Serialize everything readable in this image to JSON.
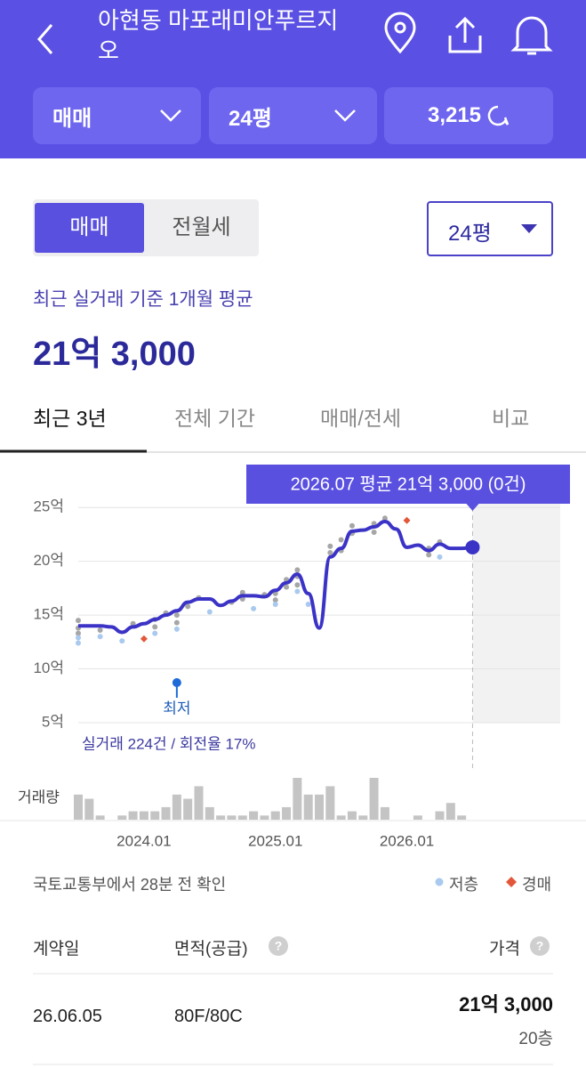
{
  "header": {
    "title": "아현동 마포래미안푸르지오",
    "filters": [
      "매매",
      "24평",
      "3,215"
    ]
  },
  "tabs": [
    "매매",
    "전월세"
  ],
  "size_select": "24평",
  "summary": {
    "caption": "최근 실거래 기준 1개월 평균",
    "price": "21억 3,000"
  },
  "period_tabs": [
    "최근 3년",
    "전체 기간",
    "매매/전세",
    "비교"
  ],
  "chart_data": {
    "type": "line",
    "tooltip": "2026.07 평균 21억 3,000 (0건)",
    "x": [
      "2023.07",
      "2023.08",
      "2023.09",
      "2023.10",
      "2023.11",
      "2023.12",
      "2024.01",
      "2024.02",
      "2024.03",
      "2024.04",
      "2024.05",
      "2024.06",
      "2024.07",
      "2024.08",
      "2024.09",
      "2024.10",
      "2024.11",
      "2024.12",
      "2025.01",
      "2025.02",
      "2025.03",
      "2025.04",
      "2025.05",
      "2025.06",
      "2025.07",
      "2025.08",
      "2025.09",
      "2025.10",
      "2025.11",
      "2025.12",
      "2026.01",
      "2026.02",
      "2026.03",
      "2026.04",
      "2026.05",
      "2026.06",
      "2026.07"
    ],
    "series": [
      {
        "color": "#3b33c6",
        "values": [
          14.0,
          14.0,
          14.0,
          13.9,
          13.4,
          13.9,
          14.2,
          14.6,
          15.0,
          15.4,
          16.2,
          16.5,
          16.5,
          15.9,
          16.3,
          16.8,
          16.8,
          16.7,
          17.3,
          18.0,
          18.8,
          17.0,
          13.8,
          20.4,
          21.2,
          22.8,
          22.9,
          23.2,
          23.7,
          23.0,
          21.3,
          21.5,
          21.0,
          21.6,
          21.2,
          21.2,
          21.3
        ]
      }
    ],
    "scatter": [
      {
        "color": "#a6a6a6",
        "x": [
          "2023.07",
          "2023.07",
          "2023.07",
          "2023.09",
          "2023.12",
          "2024.02",
          "2024.02",
          "2024.03",
          "2024.04",
          "2024.04",
          "2024.05",
          "2024.06",
          "2024.09",
          "2024.10",
          "2024.10",
          "2024.12",
          "2025.01",
          "2025.01",
          "2025.02",
          "2025.02",
          "2025.03",
          "2025.03",
          "2025.03",
          "2025.06",
          "2025.06",
          "2025.07",
          "2025.07",
          "2025.08",
          "2025.08",
          "2025.10",
          "2025.10",
          "2025.11",
          "2026.03",
          "2026.03",
          "2026.04"
        ],
        "values": [
          13.8,
          14.5,
          13.3,
          13.6,
          14.2,
          14.6,
          13.9,
          15.2,
          15.0,
          14.3,
          15.8,
          16.6,
          16.2,
          17.1,
          16.5,
          16.9,
          17.0,
          16.4,
          18.3,
          17.6,
          19.2,
          18.6,
          17.8,
          20.8,
          21.4,
          22.0,
          21.0,
          22.6,
          23.3,
          23.5,
          22.7,
          24.0,
          21.2,
          20.6,
          21.8
        ]
      },
      {
        "name": "저층",
        "color": "#a9c9ee",
        "x": [
          "2023.07",
          "2023.07",
          "2023.09",
          "2023.11",
          "2024.02",
          "2024.04",
          "2024.07",
          "2024.11",
          "2025.01",
          "2025.03",
          "2025.04",
          "2026.04"
        ],
        "values": [
          12.4,
          12.9,
          13.0,
          12.6,
          13.3,
          13.7,
          15.3,
          15.6,
          16.0,
          17.2,
          16.0,
          20.4
        ]
      },
      {
        "name": "경매",
        "color": "#e2573a",
        "x": [
          "2024.01",
          "2026.01"
        ],
        "values": [
          12.8,
          23.8
        ]
      }
    ],
    "xlim": [
      "2023.07",
      "2027.03"
    ],
    "xticks": [
      "2024.01",
      "2025.01",
      "2026.01"
    ],
    "ylim": [
      5,
      27.5
    ],
    "yticks": [
      {
        "value": 25,
        "label": "25억"
      },
      {
        "value": 20,
        "label": "20억"
      },
      {
        "value": 15,
        "label": "15억"
      },
      {
        "value": 10,
        "label": "10억"
      },
      {
        "value": 5,
        "label": "5억"
      }
    ],
    "grid": true,
    "annotation": {
      "label": "최저",
      "x": "2024.04"
    },
    "stats": "실거래 224건 / 회전율 17%",
    "volume": {
      "label": "거래량",
      "color": "#c4c4c4",
      "values": [
        6,
        5,
        1,
        0,
        1,
        2,
        2,
        2,
        3,
        6,
        5,
        8,
        3,
        1,
        1,
        1,
        2,
        1,
        2,
        3,
        10,
        6,
        6,
        8,
        1,
        2,
        1,
        10,
        3,
        0,
        0,
        1,
        0,
        2,
        4,
        1,
        0
      ]
    }
  },
  "source": "국토교통부에서 28분 전 확인",
  "table": {
    "headers": [
      "계약일",
      "면적(공급)",
      "가격"
    ],
    "rows": [
      [
        "26.06.05",
        "80F/80C",
        "21억 3,000",
        "20층"
      ]
    ]
  }
}
